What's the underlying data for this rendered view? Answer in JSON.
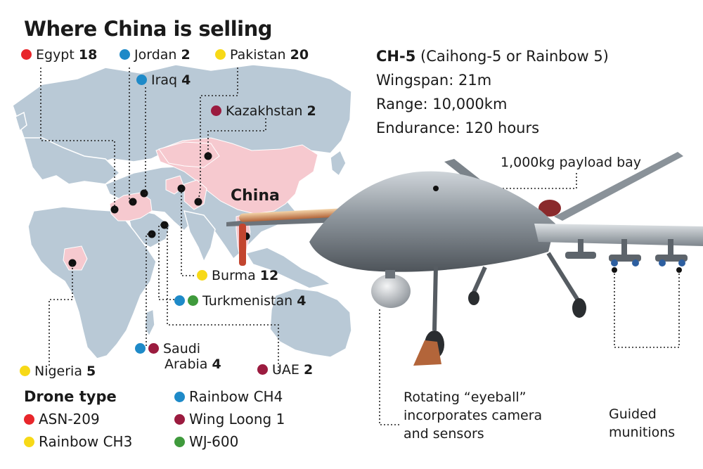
{
  "title": "Where China is selling",
  "colors": {
    "asn209": "#e8262b",
    "rainbow_ch3": "#f7d917",
    "rainbow_ch4": "#1e8ac8",
    "wing_loong_1": "#9b1b3f",
    "wj600": "#3f9a3c",
    "land": "#b9c9d6",
    "highlight": "#f6c9cf"
  },
  "buyers": [
    {
      "country": "Egypt",
      "count": "18",
      "types": [
        "asn209"
      ]
    },
    {
      "country": "Jordan",
      "count": "2",
      "types": [
        "rainbow_ch4"
      ]
    },
    {
      "country": "Pakistan",
      "count": "20",
      "types": [
        "rainbow_ch3"
      ]
    },
    {
      "country": "Iraq",
      "count": "4",
      "types": [
        "rainbow_ch4"
      ]
    },
    {
      "country": "Kazakhstan",
      "count": "2",
      "types": [
        "wing_loong_1"
      ]
    },
    {
      "country": "Burma",
      "count": "12",
      "types": [
        "rainbow_ch3"
      ]
    },
    {
      "country": "Turkmenistan",
      "count": "4",
      "types": [
        "rainbow_ch4",
        "wj600"
      ]
    },
    {
      "country": "Saudi",
      "country_line2": "Arabia",
      "count": "4",
      "types": [
        "rainbow_ch4",
        "wing_loong_1"
      ]
    },
    {
      "country": "UAE",
      "count": "2",
      "types": [
        "wing_loong_1"
      ]
    },
    {
      "country": "Nigeria",
      "count": "5",
      "types": [
        "rainbow_ch3"
      ]
    }
  ],
  "map_label": "China",
  "drone": {
    "name": "CH-5",
    "full_name": "(Caihong-5 or Rainbow 5)",
    "wingspan": "Wingspan: 21m",
    "range": "Range: 10,000km",
    "endurance": "Endurance: 120 hours",
    "payload": "1,000kg payload bay",
    "eyeball_line1": "Rotating “eyeball”",
    "eyeball_line2": "incorporates camera",
    "eyeball_line3": "and sensors",
    "munitions_line1": "Guided",
    "munitions_line2": "munitions"
  },
  "legend": {
    "title": "Drone type",
    "items": [
      {
        "key": "asn209",
        "label": "ASN-209"
      },
      {
        "key": "rainbow_ch3",
        "label": "Rainbow CH3"
      },
      {
        "key": "rainbow_ch4",
        "label": "Rainbow CH4"
      },
      {
        "key": "wing_loong_1",
        "label": "Wing Loong 1"
      },
      {
        "key": "wj600",
        "label": "WJ-600"
      }
    ]
  }
}
